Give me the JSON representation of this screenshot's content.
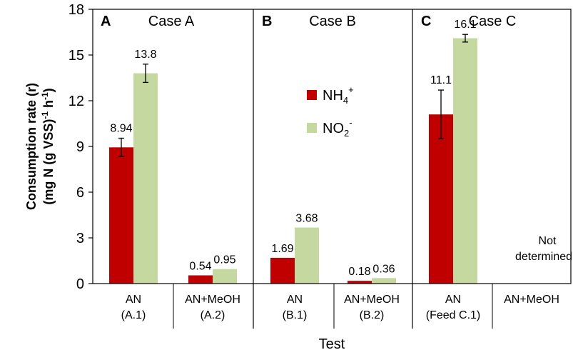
{
  "chart_data": {
    "type": "bar",
    "xlabel": "Test",
    "ylabel_line1": "Consumption rate (r)",
    "ylabel_line2_parts": [
      "(mg N (g VSS)",
      "-1",
      " h",
      "-1",
      ")"
    ],
    "ylim": [
      0,
      18
    ],
    "yticks": [
      "0",
      "3",
      "6",
      "9",
      "12",
      "15",
      "18"
    ],
    "grid": false,
    "legend_position": "upper-middle",
    "colors": {
      "nh4": "#c00000",
      "no2": "#c4d89f"
    },
    "legend": {
      "nh4": {
        "base": "NH",
        "sub": "4",
        "sup": "+"
      },
      "no2": {
        "base": "NO",
        "sub": "2",
        "sup": "-"
      }
    },
    "panels": [
      {
        "letter": "A",
        "title": "Case A"
      },
      {
        "letter": "B",
        "title": "Case B"
      },
      {
        "letter": "C",
        "title": "Case C"
      }
    ],
    "groups": [
      {
        "panel": 0,
        "label1": "AN",
        "label2": "(A.1)",
        "nh4": {
          "value": 8.94,
          "label": "8.94",
          "err": 0.6
        },
        "no2": {
          "value": 13.8,
          "label": "13.8",
          "err": 0.6
        }
      },
      {
        "panel": 0,
        "label1": "AN+MeOH",
        "label2": "(A.2)",
        "nh4": {
          "value": 0.54,
          "label": "0.54",
          "err": 0
        },
        "no2": {
          "value": 0.95,
          "label": "0.95",
          "err": 0
        }
      },
      {
        "panel": 1,
        "label1": "AN",
        "label2": "(B.1)",
        "nh4": {
          "value": 1.69,
          "label": "1.69",
          "err": 0
        },
        "no2": {
          "value": 3.68,
          "label": "3.68",
          "err": 0
        }
      },
      {
        "panel": 1,
        "label1": "AN+MeOH",
        "label2": "(B.2)",
        "nh4": {
          "value": 0.18,
          "label": "0.18",
          "err": 0
        },
        "no2": {
          "value": 0.36,
          "label": "0.36",
          "err": 0
        }
      },
      {
        "panel": 2,
        "label1": "AN",
        "label2": "(Feed C.1)",
        "nh4": {
          "value": 11.1,
          "label": "11.1",
          "err": 1.6
        },
        "no2": {
          "value": 16.1,
          "label": "16.1",
          "err": 0.25
        }
      },
      {
        "panel": 2,
        "label1": "AN+MeOH",
        "label2": "",
        "note_line1": "Not",
        "note_line2": "determined"
      }
    ]
  }
}
